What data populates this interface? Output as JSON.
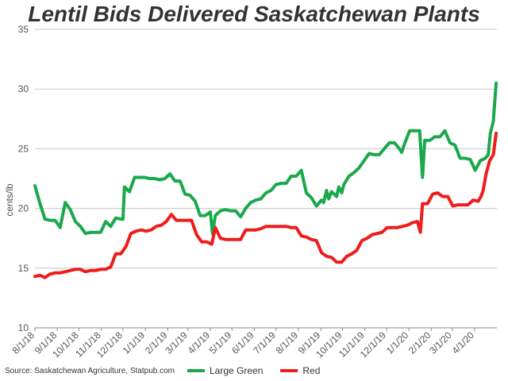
{
  "chart_data": {
    "type": "line",
    "title": "Lentil Bids Delivered Saskatchewan Plants",
    "ylabel": "cents/lb",
    "xlabel": "",
    "ylim": [
      10,
      35
    ],
    "yticks": [
      10,
      15,
      20,
      25,
      30,
      35
    ],
    "x_tick_labels": [
      "8/1/18",
      "9/1/18",
      "10/1/18",
      "11/1/18",
      "12/1/18",
      "1/1/19",
      "2/1/19",
      "3/1/19",
      "4/1/19",
      "5/1/19",
      "6/1/19",
      "7/1/19",
      "8/1/19",
      "9/1/19",
      "10/1/19",
      "11/1/19",
      "12/1/19",
      "1/1/20",
      "2/1/20",
      "3/1/20",
      "4/1/20"
    ],
    "grid": "horizontal",
    "legend_position": "bottom",
    "source": "Source: Saskatchewan Agriculture, Statpub.com",
    "series": [
      {
        "name": "Large Green",
        "color": "#1aa84b",
        "points": [
          [
            "2018-08-01",
            21.9
          ],
          [
            "2018-08-08",
            20.4
          ],
          [
            "2018-08-15",
            19.1
          ],
          [
            "2018-08-22",
            19.0
          ],
          [
            "2018-08-29",
            19.0
          ],
          [
            "2018-09-05",
            18.4
          ],
          [
            "2018-09-12",
            20.5
          ],
          [
            "2018-09-19",
            19.9
          ],
          [
            "2018-09-26",
            18.9
          ],
          [
            "2018-10-03",
            18.5
          ],
          [
            "2018-10-10",
            17.9
          ],
          [
            "2018-10-17",
            18.0
          ],
          [
            "2018-10-24",
            18.0
          ],
          [
            "2018-10-31",
            18.0
          ],
          [
            "2018-11-07",
            18.9
          ],
          [
            "2018-11-14",
            18.5
          ],
          [
            "2018-11-21",
            19.2
          ],
          [
            "2018-11-28",
            19.1
          ],
          [
            "2018-12-01",
            19.1
          ],
          [
            "2018-12-03",
            21.8
          ],
          [
            "2018-12-10",
            21.4
          ],
          [
            "2018-12-17",
            22.6
          ],
          [
            "2018-12-24",
            22.6
          ],
          [
            "2018-12-31",
            22.6
          ],
          [
            "2019-01-07",
            22.5
          ],
          [
            "2019-01-14",
            22.5
          ],
          [
            "2019-01-21",
            22.4
          ],
          [
            "2019-01-28",
            22.5
          ],
          [
            "2019-02-04",
            22.9
          ],
          [
            "2019-02-11",
            22.3
          ],
          [
            "2019-02-18",
            22.3
          ],
          [
            "2019-02-25",
            21.2
          ],
          [
            "2019-03-04",
            21.1
          ],
          [
            "2019-03-11",
            20.6
          ],
          [
            "2019-03-18",
            19.4
          ],
          [
            "2019-03-25",
            19.4
          ],
          [
            "2019-04-01",
            19.7
          ],
          [
            "2019-04-04",
            17.9
          ],
          [
            "2019-04-08",
            19.4
          ],
          [
            "2019-04-15",
            19.8
          ],
          [
            "2019-04-22",
            19.9
          ],
          [
            "2019-04-29",
            19.8
          ],
          [
            "2019-05-06",
            19.8
          ],
          [
            "2019-05-13",
            19.3
          ],
          [
            "2019-05-20",
            20.0
          ],
          [
            "2019-05-27",
            20.5
          ],
          [
            "2019-06-03",
            20.7
          ],
          [
            "2019-06-10",
            20.8
          ],
          [
            "2019-06-17",
            21.3
          ],
          [
            "2019-06-24",
            21.5
          ],
          [
            "2019-07-01",
            22.0
          ],
          [
            "2019-07-08",
            22.1
          ],
          [
            "2019-07-15",
            22.1
          ],
          [
            "2019-07-22",
            22.7
          ],
          [
            "2019-07-29",
            22.7
          ],
          [
            "2019-08-05",
            23.2
          ],
          [
            "2019-08-12",
            21.3
          ],
          [
            "2019-08-19",
            20.9
          ],
          [
            "2019-08-26",
            20.2
          ],
          [
            "2019-09-02",
            20.7
          ],
          [
            "2019-09-05",
            20.5
          ],
          [
            "2019-09-09",
            21.5
          ],
          [
            "2019-09-12",
            20.8
          ],
          [
            "2019-09-16",
            21.4
          ],
          [
            "2019-09-23",
            21.0
          ],
          [
            "2019-09-26",
            21.8
          ],
          [
            "2019-09-30",
            21.3
          ],
          [
            "2019-10-03",
            22.0
          ],
          [
            "2019-10-10",
            22.7
          ],
          [
            "2019-10-17",
            23.0
          ],
          [
            "2019-10-24",
            23.4
          ],
          [
            "2019-10-31",
            24.0
          ],
          [
            "2019-11-07",
            24.6
          ],
          [
            "2019-11-14",
            24.5
          ],
          [
            "2019-11-21",
            24.5
          ],
          [
            "2019-11-28",
            25.0
          ],
          [
            "2019-12-05",
            25.5
          ],
          [
            "2019-12-12",
            25.5
          ],
          [
            "2019-12-19",
            25.0
          ],
          [
            "2019-12-22",
            24.7
          ],
          [
            "2019-12-26",
            25.4
          ],
          [
            "2020-01-02",
            26.5
          ],
          [
            "2020-01-09",
            26.5
          ],
          [
            "2020-01-16",
            26.5
          ],
          [
            "2020-01-20",
            22.6
          ],
          [
            "2020-01-23",
            25.7
          ],
          [
            "2020-01-30",
            25.7
          ],
          [
            "2020-02-06",
            26.0
          ],
          [
            "2020-02-13",
            26.0
          ],
          [
            "2020-02-20",
            26.5
          ],
          [
            "2020-02-27",
            25.5
          ],
          [
            "2020-03-05",
            25.3
          ],
          [
            "2020-03-12",
            24.2
          ],
          [
            "2020-03-19",
            24.2
          ],
          [
            "2020-03-26",
            24.1
          ],
          [
            "2020-04-02",
            23.2
          ],
          [
            "2020-04-09",
            24.0
          ],
          [
            "2020-04-16",
            24.2
          ],
          [
            "2020-04-20",
            24.5
          ],
          [
            "2020-04-23",
            26.3
          ],
          [
            "2020-04-27",
            27.3
          ],
          [
            "2020-05-01",
            30.5
          ]
        ]
      },
      {
        "name": "Red",
        "color": "#ee1c1c",
        "points": [
          [
            "2018-08-01",
            14.3
          ],
          [
            "2018-08-08",
            14.4
          ],
          [
            "2018-08-15",
            14.2
          ],
          [
            "2018-08-22",
            14.5
          ],
          [
            "2018-08-29",
            14.6
          ],
          [
            "2018-09-05",
            14.6
          ],
          [
            "2018-09-12",
            14.7
          ],
          [
            "2018-09-19",
            14.8
          ],
          [
            "2018-09-26",
            14.9
          ],
          [
            "2018-10-03",
            14.9
          ],
          [
            "2018-10-10",
            14.7
          ],
          [
            "2018-10-17",
            14.8
          ],
          [
            "2018-10-24",
            14.8
          ],
          [
            "2018-10-31",
            14.9
          ],
          [
            "2018-11-07",
            14.9
          ],
          [
            "2018-11-14",
            15.1
          ],
          [
            "2018-11-21",
            16.2
          ],
          [
            "2018-11-28",
            16.2
          ],
          [
            "2018-12-05",
            16.8
          ],
          [
            "2018-12-12",
            17.9
          ],
          [
            "2018-12-19",
            18.1
          ],
          [
            "2018-12-26",
            18.2
          ],
          [
            "2019-01-02",
            18.1
          ],
          [
            "2019-01-09",
            18.2
          ],
          [
            "2019-01-16",
            18.5
          ],
          [
            "2019-01-23",
            18.6
          ],
          [
            "2019-01-30",
            18.9
          ],
          [
            "2019-02-06",
            19.5
          ],
          [
            "2019-02-13",
            19.0
          ],
          [
            "2019-02-20",
            19.0
          ],
          [
            "2019-02-27",
            19.0
          ],
          [
            "2019-03-06",
            19.0
          ],
          [
            "2019-03-13",
            17.8
          ],
          [
            "2019-03-20",
            17.2
          ],
          [
            "2019-03-27",
            17.2
          ],
          [
            "2019-04-03",
            17.0
          ],
          [
            "2019-04-08",
            18.4
          ],
          [
            "2019-04-15",
            17.5
          ],
          [
            "2019-04-22",
            17.4
          ],
          [
            "2019-04-29",
            17.4
          ],
          [
            "2019-05-06",
            17.4
          ],
          [
            "2019-05-13",
            17.4
          ],
          [
            "2019-05-20",
            18.2
          ],
          [
            "2019-05-27",
            18.2
          ],
          [
            "2019-06-03",
            18.2
          ],
          [
            "2019-06-10",
            18.3
          ],
          [
            "2019-06-17",
            18.5
          ],
          [
            "2019-06-24",
            18.5
          ],
          [
            "2019-07-01",
            18.5
          ],
          [
            "2019-07-08",
            18.5
          ],
          [
            "2019-07-15",
            18.5
          ],
          [
            "2019-07-22",
            18.4
          ],
          [
            "2019-07-29",
            18.4
          ],
          [
            "2019-08-05",
            17.7
          ],
          [
            "2019-08-12",
            17.6
          ],
          [
            "2019-08-19",
            17.4
          ],
          [
            "2019-08-26",
            17.3
          ],
          [
            "2019-09-02",
            16.3
          ],
          [
            "2019-09-09",
            16.0
          ],
          [
            "2019-09-16",
            15.9
          ],
          [
            "2019-09-23",
            15.5
          ],
          [
            "2019-09-30",
            15.5
          ],
          [
            "2019-10-07",
            16.0
          ],
          [
            "2019-10-14",
            16.2
          ],
          [
            "2019-10-21",
            16.5
          ],
          [
            "2019-10-28",
            17.3
          ],
          [
            "2019-11-04",
            17.5
          ],
          [
            "2019-11-11",
            17.8
          ],
          [
            "2019-11-18",
            17.9
          ],
          [
            "2019-11-25",
            18.0
          ],
          [
            "2019-12-02",
            18.4
          ],
          [
            "2019-12-09",
            18.4
          ],
          [
            "2019-12-16",
            18.4
          ],
          [
            "2019-12-23",
            18.5
          ],
          [
            "2019-12-30",
            18.6
          ],
          [
            "2020-01-06",
            18.8
          ],
          [
            "2020-01-13",
            18.9
          ],
          [
            "2020-01-17",
            18.0
          ],
          [
            "2020-01-20",
            20.4
          ],
          [
            "2020-01-27",
            20.4
          ],
          [
            "2020-02-03",
            21.2
          ],
          [
            "2020-02-10",
            21.3
          ],
          [
            "2020-02-17",
            21.0
          ],
          [
            "2020-02-24",
            21.0
          ],
          [
            "2020-03-02",
            20.2
          ],
          [
            "2020-03-09",
            20.3
          ],
          [
            "2020-03-16",
            20.3
          ],
          [
            "2020-03-23",
            20.3
          ],
          [
            "2020-03-30",
            20.7
          ],
          [
            "2020-04-06",
            20.6
          ],
          [
            "2020-04-10",
            21.0
          ],
          [
            "2020-04-13",
            21.5
          ],
          [
            "2020-04-17",
            22.9
          ],
          [
            "2020-04-22",
            24.0
          ],
          [
            "2020-04-27",
            24.5
          ],
          [
            "2020-05-01",
            26.3
          ]
        ]
      }
    ]
  }
}
